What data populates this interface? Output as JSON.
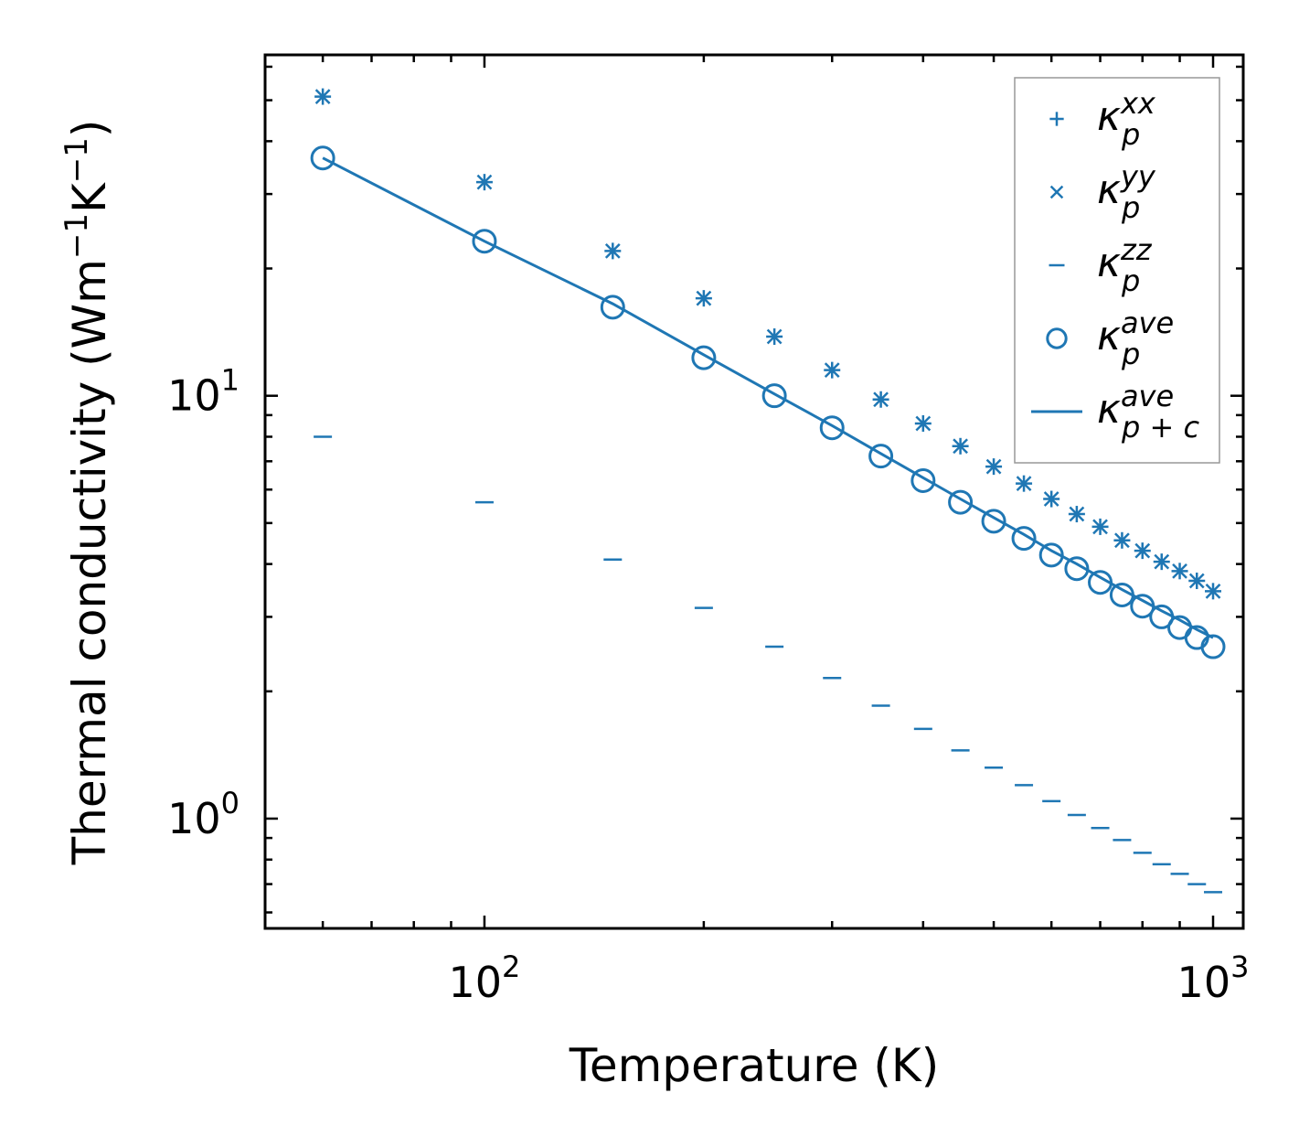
{
  "chart_data": {
    "type": "scatter",
    "xscale": "log",
    "yscale": "log",
    "xlabel": "Temperature (K)",
    "ylabel": {
      "main": "Thermal conductivity (Wm",
      "exp1": "−1",
      "mid": "K",
      "exp2": "−1",
      "close": ")"
    },
    "xlim": [
      50,
      1100
    ],
    "ylim": [
      0.55,
      64
    ],
    "x_ticks": [
      {
        "value": 100,
        "base": "10",
        "exp": "2"
      },
      {
        "value": 1000,
        "base": "10",
        "exp": "3"
      }
    ],
    "y_ticks": [
      {
        "value": 1,
        "base": "10",
        "exp": "0"
      },
      {
        "value": 10,
        "base": "10",
        "exp": "1"
      }
    ],
    "color": "#1f77b4",
    "x": [
      60,
      100,
      150,
      200,
      250,
      300,
      350,
      400,
      450,
      500,
      550,
      600,
      650,
      700,
      750,
      800,
      850,
      900,
      950,
      1000
    ],
    "series": [
      {
        "name": "kappa_p_xx",
        "marker": "plus",
        "values": [
          51,
          32,
          22,
          17,
          13.8,
          11.5,
          9.8,
          8.6,
          7.6,
          6.8,
          6.2,
          5.7,
          5.25,
          4.9,
          4.55,
          4.3,
          4.05,
          3.85,
          3.65,
          3.45
        ]
      },
      {
        "name": "kappa_p_yy",
        "marker": "cross",
        "values": [
          51,
          32,
          22,
          17,
          13.8,
          11.5,
          9.8,
          8.6,
          7.6,
          6.8,
          6.2,
          5.7,
          5.25,
          4.9,
          4.55,
          4.3,
          4.05,
          3.85,
          3.65,
          3.45
        ]
      },
      {
        "name": "kappa_p_zz",
        "marker": "hline",
        "values": [
          8.0,
          5.6,
          4.1,
          3.15,
          2.55,
          2.15,
          1.85,
          1.63,
          1.45,
          1.32,
          1.2,
          1.1,
          1.02,
          0.95,
          0.89,
          0.83,
          0.78,
          0.74,
          0.7,
          0.67
        ]
      },
      {
        "name": "kappa_p_ave",
        "marker": "circle",
        "values": [
          36.5,
          23.2,
          16.2,
          12.3,
          10.0,
          8.4,
          7.2,
          6.3,
          5.6,
          5.05,
          4.6,
          4.2,
          3.9,
          3.62,
          3.38,
          3.18,
          3.0,
          2.83,
          2.68,
          2.55
        ]
      },
      {
        "name": "kappa_p+c_ave",
        "marker": "line",
        "values": [
          36.5,
          23.2,
          16.5,
          12.5,
          10.1,
          8.5,
          7.3,
          6.4,
          5.7,
          5.15,
          4.7,
          4.3,
          4.0,
          3.72,
          3.48,
          3.28,
          3.1,
          2.95,
          2.8,
          2.68
        ]
      }
    ],
    "legend": {
      "position": "top-right",
      "entries": [
        {
          "base": "κ",
          "sup": "xx",
          "sub": "p",
          "marker": "plus"
        },
        {
          "base": "κ",
          "sup": "yy",
          "sub": "p",
          "marker": "cross"
        },
        {
          "base": "κ",
          "sup": "zz",
          "sub": "p",
          "marker": "hline"
        },
        {
          "base": "κ",
          "sup": "ave",
          "sub": "p",
          "marker": "circle"
        },
        {
          "base": "κ",
          "sup": "ave",
          "sub": "p + c",
          "marker": "line"
        }
      ]
    }
  }
}
